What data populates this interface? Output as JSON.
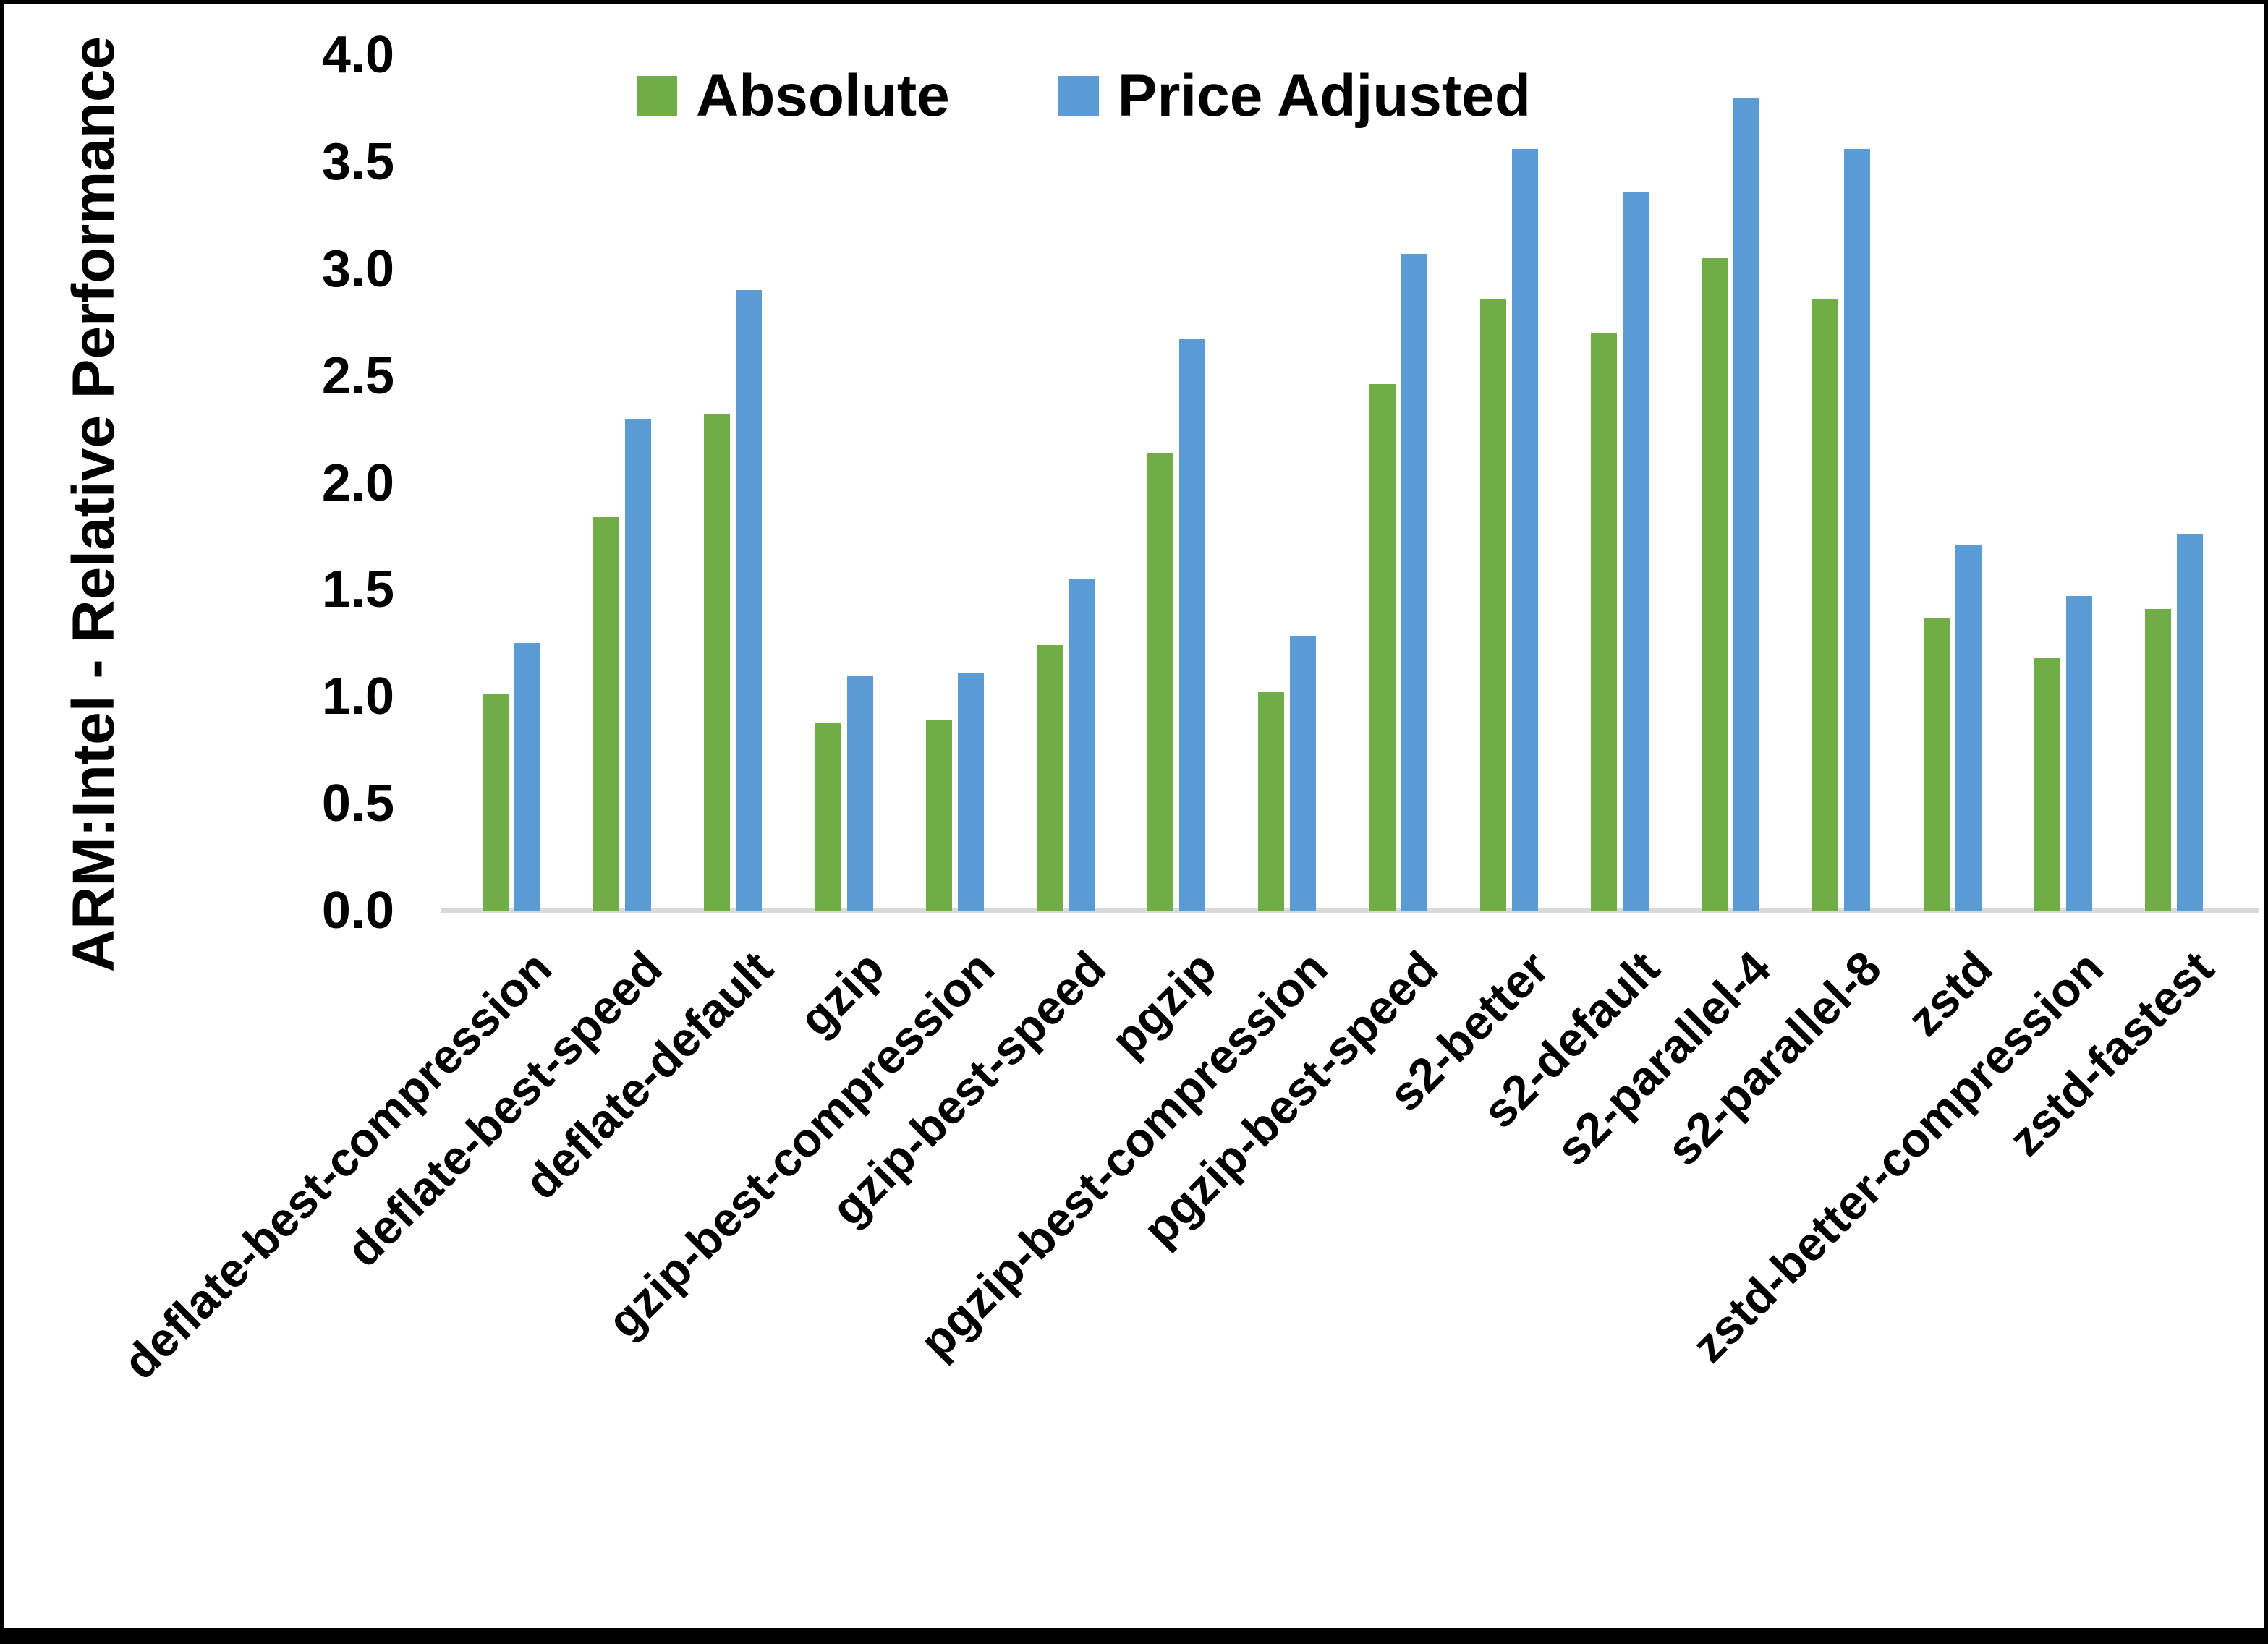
{
  "legend": {
    "absolute": "Absolute",
    "price_adjusted": "Price Adjusted"
  },
  "y_axis": {
    "title": "ARM:Intel - Relative Performance",
    "tick_labels": [
      "4.0",
      "3.5",
      "3.0",
      "2.5",
      "2.0",
      "1.5",
      "1.0",
      "0.5",
      "0.0"
    ]
  },
  "colors": {
    "absolute": "#70AD47",
    "price_adjusted": "#5B9BD5",
    "axis_line": "#D9D9D9",
    "text": "#000000",
    "frame": "#000000"
  },
  "chart_data": {
    "type": "bar",
    "title": "",
    "xlabel": "",
    "ylabel": "ARM:Intel - Relative Performance",
    "ylim": [
      0,
      4
    ],
    "ytick_step": 0.5,
    "grid": false,
    "legend_position": "top-center",
    "categories": [
      "deflate-best-compression",
      "deflate-best-speed",
      "deflate-default",
      "gzip",
      "gzip-best-compression",
      "gzip-best-speed",
      "pgzip",
      "pgzip-best-compression",
      "pgzip-best-speed",
      "s2-better",
      "s2-default",
      "s2-parallel-4",
      "s2-parallel-8",
      "zstd",
      "zstd-better-compression",
      "zstd-fastest"
    ],
    "series": [
      {
        "name": "Absolute",
        "color": "#70AD47",
        "values": [
          1.01,
          1.84,
          2.32,
          0.88,
          0.89,
          1.24,
          2.14,
          1.02,
          2.46,
          2.86,
          2.7,
          3.05,
          2.86,
          1.37,
          1.18,
          1.41
        ]
      },
      {
        "name": "Price Adjusted",
        "color": "#5B9BD5",
        "values": [
          1.25,
          2.3,
          2.9,
          1.1,
          1.11,
          1.55,
          2.67,
          1.28,
          3.07,
          3.56,
          3.36,
          3.8,
          3.56,
          1.71,
          1.47,
          1.76
        ]
      }
    ]
  }
}
